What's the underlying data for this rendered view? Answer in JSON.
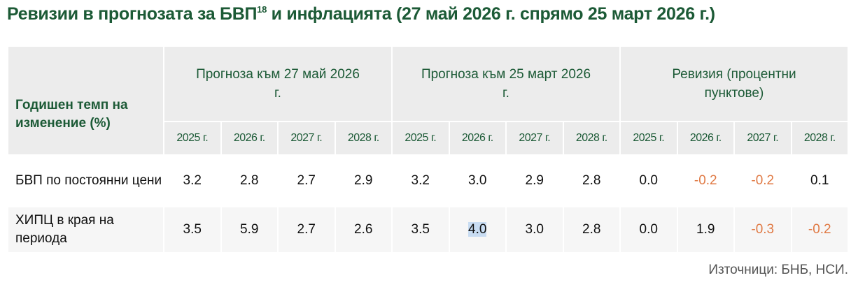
{
  "title": {
    "text": "Ревизии в прогнозата за БВП",
    "sup": "18",
    "rest": " и инфлацията (27 май 2026 г. спрямо 25 март 2026 г.)"
  },
  "table": {
    "corner": "Годишен темп на изменение (%)",
    "groups": [
      {
        "label": "Прогноза към 27 май 2026 г.",
        "years": [
          "2025 г.",
          "2026 г.",
          "2027 г.",
          "2028 г."
        ]
      },
      {
        "label": "Прогноза към 25 март 2026 г.",
        "years": [
          "2025 г.",
          "2026 г.",
          "2027 г.",
          "2028 г."
        ]
      },
      {
        "label": "Ревизия (процентни пунктове)",
        "years": [
          "2025 г.",
          "2026 г.",
          "2027 г.",
          "2028 г."
        ]
      }
    ],
    "rows": [
      {
        "label": "БВП по постоянни цени",
        "values": [
          "3.2",
          "2.8",
          "2.7",
          "2.9",
          "3.2",
          "3.0",
          "2.9",
          "2.8",
          "0.0",
          "-0.2",
          "-0.2",
          "0.1"
        ]
      },
      {
        "label": "ХИПЦ в края на периода",
        "values": [
          "3.5",
          "5.9",
          "2.7",
          "2.6",
          "3.5",
          "4.0",
          "3.0",
          "2.8",
          "0.0",
          "1.9",
          "-0.3",
          "-0.2"
        ]
      }
    ],
    "negative_color": "#e07a45"
  },
  "source": "Източници: БНБ, НСИ."
}
